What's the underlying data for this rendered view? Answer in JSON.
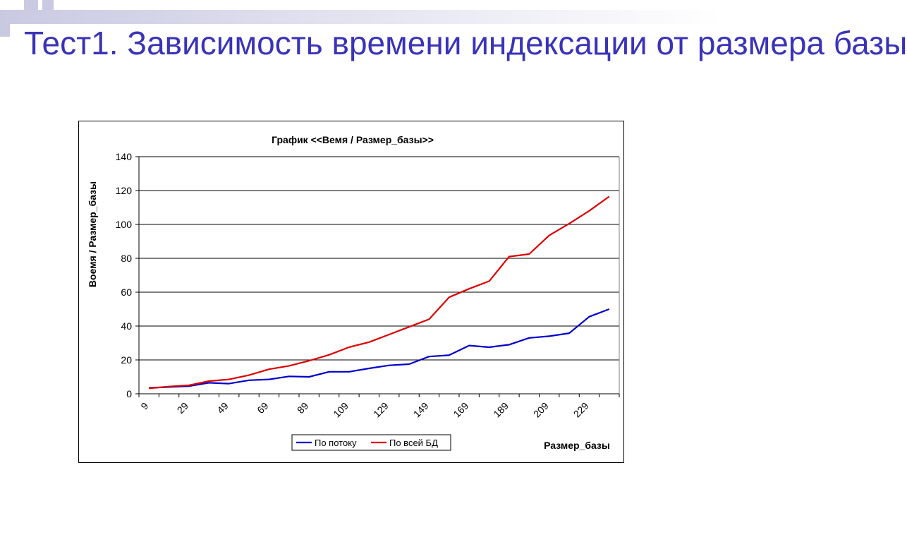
{
  "slide": {
    "title": "Тест1. Зависимость времени индексации от размера базы",
    "accent_color": "#3a33b8",
    "bar_color": "#c9c9e2"
  },
  "chart_data": {
    "type": "line",
    "title": "График <<Вемя / Размер_базы>>",
    "xlabel": "Размер_базы",
    "ylabel": "Воемя / Размер_базы",
    "x": [
      9,
      19,
      29,
      39,
      49,
      59,
      69,
      79,
      89,
      99,
      109,
      119,
      129,
      139,
      149,
      159,
      169,
      179,
      189,
      199,
      209,
      219,
      229,
      239
    ],
    "x_tick_labels": [
      "9",
      "29",
      "49",
      "69",
      "89",
      "109",
      "129",
      "149",
      "169",
      "189",
      "209",
      "229"
    ],
    "ylim": [
      0,
      140
    ],
    "y_ticks": [
      0,
      20,
      40,
      60,
      80,
      100,
      120,
      140
    ],
    "grid": true,
    "legend_position": "bottom-center",
    "series": [
      {
        "name": "По потоку",
        "color": "#0000cc",
        "values": [
          3.5,
          4,
          4.5,
          6.5,
          6,
          8,
          8.5,
          10.3,
          10,
          13,
          13,
          15,
          16.8,
          17.5,
          22,
          22.8,
          28.5,
          27.5,
          29,
          33,
          34,
          35.8,
          45.5,
          50
        ]
      },
      {
        "name": "По всей БД",
        "color": "#dd0000",
        "values": [
          3.2,
          4.3,
          5,
          7.5,
          8.5,
          11,
          14.5,
          16.5,
          19.5,
          23,
          27.5,
          30.5,
          35,
          39.5,
          44,
          57,
          62,
          66.5,
          81,
          82.5,
          93.5,
          100.5,
          108,
          116.5
        ]
      }
    ]
  }
}
